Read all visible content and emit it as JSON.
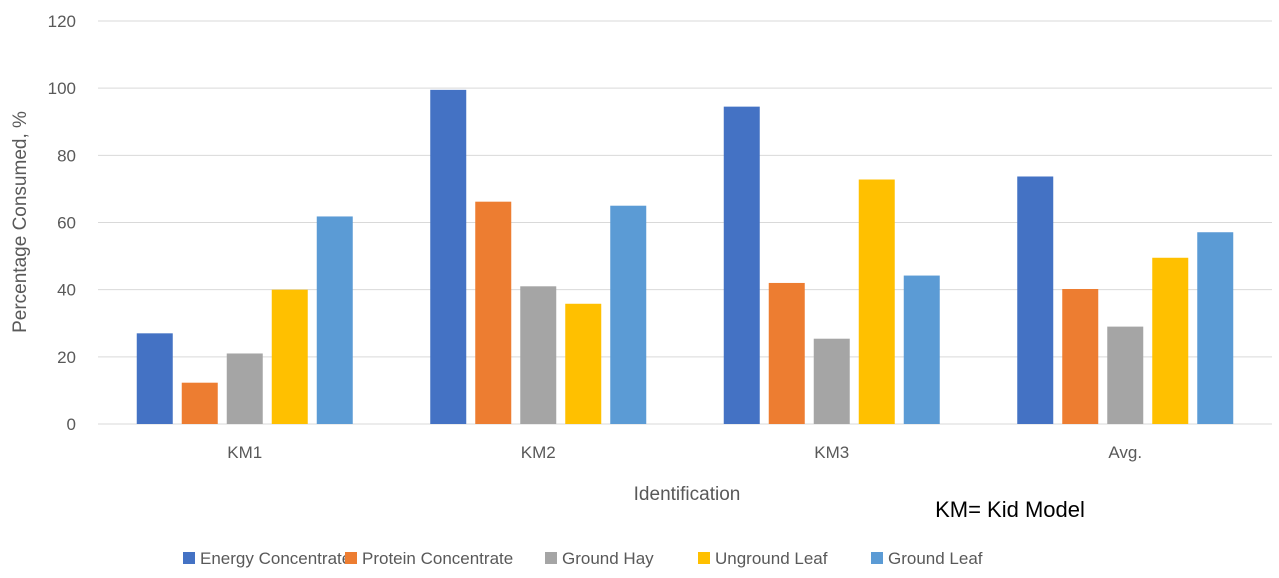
{
  "chart_data": {
    "type": "bar",
    "categories": [
      "KM1",
      "KM2",
      "KM3",
      "Avg."
    ],
    "series": [
      {
        "name": "Energy Concentrate",
        "color": "#4472C4",
        "values": [
          27,
          99.5,
          94.5,
          73.7
        ]
      },
      {
        "name": "Protein Concentrate",
        "color": "#ED7D31",
        "values": [
          12.3,
          66.2,
          42,
          40.2
        ]
      },
      {
        "name": "Ground Hay",
        "color": "#A5A5A5",
        "values": [
          21,
          41,
          25.4,
          29
        ]
      },
      {
        "name": "Unground Leaf",
        "color": "#FFC000",
        "values": [
          40,
          35.8,
          72.8,
          49.5
        ]
      },
      {
        "name": "Ground Leaf",
        "color": "#5B9BD5",
        "values": [
          61.8,
          65,
          44.2,
          57.1
        ]
      }
    ],
    "xlabel": "Identification",
    "ylabel": "Percentage Consumed, %",
    "ylim": [
      0,
      120
    ],
    "yticks": [
      0,
      20,
      40,
      60,
      80,
      100,
      120
    ],
    "grid": true,
    "legend_position": "bottom",
    "annotation": "KM= Kid Model"
  }
}
